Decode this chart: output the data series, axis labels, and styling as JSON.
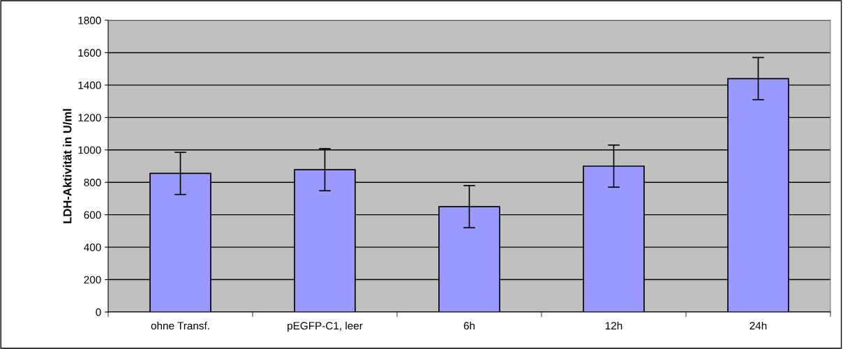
{
  "chart_data": {
    "type": "bar",
    "ylabel": "LDH-Aktivität in U/ml",
    "categories": [
      "ohne Transf.",
      "pEGFP-C1, leer",
      "6h",
      "12h",
      "24h"
    ],
    "values": [
      855,
      878,
      650,
      900,
      1440
    ],
    "errors": [
      130,
      130,
      130,
      130,
      130
    ],
    "color": "#9999ff",
    "ylim": [
      0,
      1800
    ],
    "yticks": [
      0,
      200,
      400,
      600,
      800,
      1000,
      1200,
      1400,
      1600,
      1800
    ],
    "grid": "y",
    "legend": false
  }
}
